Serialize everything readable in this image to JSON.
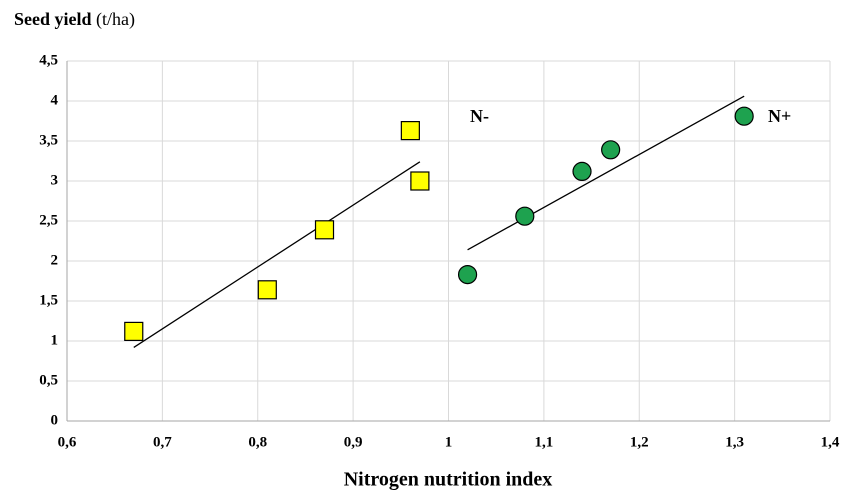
{
  "chart_data": {
    "type": "scatter",
    "y_label": "Seed yield",
    "y_unit": "(t/ha)",
    "x_label": "Nitrogen nutrition index",
    "xlim": [
      0.6,
      1.4
    ],
    "xticks": [
      {
        "value": 0.6,
        "label": "0,6"
      },
      {
        "value": 0.7,
        "label": "0,7"
      },
      {
        "value": 0.8,
        "label": "0,8"
      },
      {
        "value": 0.9,
        "label": "0,9"
      },
      1,
      {
        "value": 1.1,
        "label": "1,1"
      },
      {
        "value": 1.2,
        "label": "1,2"
      },
      {
        "value": 1.3,
        "label": "1,3"
      },
      {
        "value": 1.4,
        "label": "1,4"
      }
    ],
    "ylim": [
      0,
      4.5
    ],
    "yticks": [
      0,
      {
        "value": 0.5,
        "label": "0,5"
      },
      1,
      {
        "value": 1.5,
        "label": "1,5"
      },
      2,
      {
        "value": 2.5,
        "label": "2,5"
      },
      3,
      {
        "value": 3.5,
        "label": "3,5"
      },
      4,
      {
        "value": 4.5,
        "label": "4,5"
      }
    ],
    "grid": true,
    "series": [
      {
        "name": "N-",
        "marker": "square",
        "color": "#ffff00",
        "x": [
          0.67,
          0.81,
          0.87,
          0.96,
          0.97
        ],
        "values": [
          1.12,
          1.64,
          2.39,
          3.63,
          3.0
        ],
        "trendline": {
          "x": [
            0.67,
            0.97
          ],
          "values": [
            0.92,
            3.24
          ]
        }
      },
      {
        "name": "N+",
        "marker": "circle",
        "color": "#1ea24f",
        "x": [
          1.02,
          1.08,
          1.14,
          1.17,
          1.31
        ],
        "values": [
          1.83,
          2.56,
          3.12,
          3.39,
          3.81
        ],
        "trendline": {
          "x": [
            1.02,
            1.31
          ],
          "values": [
            2.14,
            4.06
          ]
        }
      }
    ]
  }
}
